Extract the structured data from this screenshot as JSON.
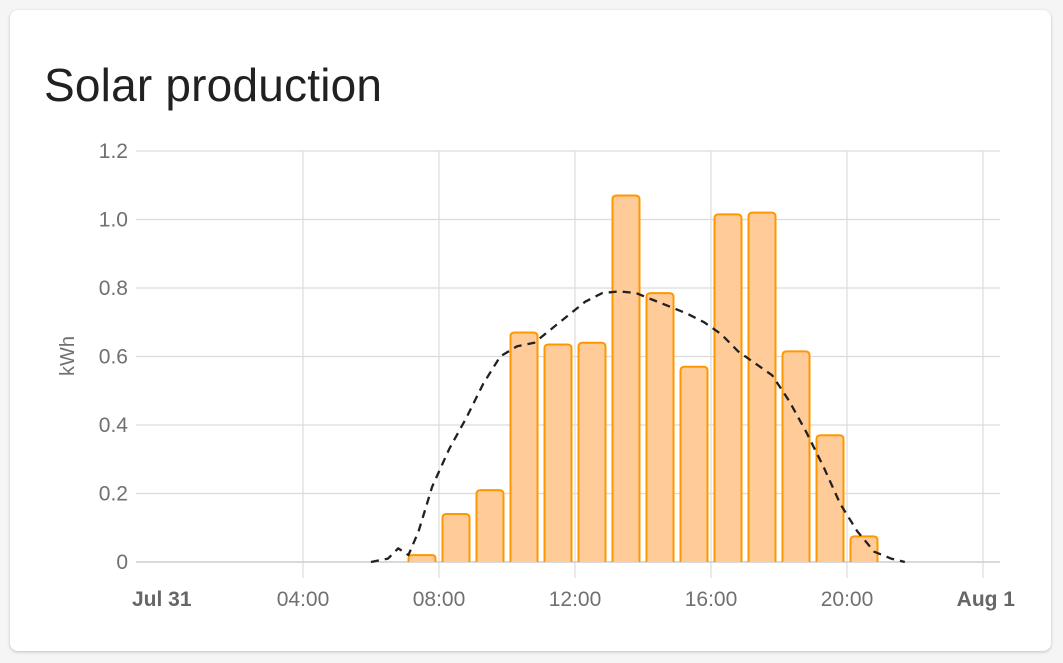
{
  "card": {
    "title": "Solar production"
  },
  "chart_data": {
    "type": "bar",
    "title": "Solar production",
    "ylabel": "kWh",
    "ylim": [
      0,
      1.2
    ],
    "yticks": [
      "0",
      "0.2",
      "0.4",
      "0.6",
      "0.8",
      "1.0",
      "1.2"
    ],
    "xticks": [
      {
        "hour": 0,
        "label": "Jul 31",
        "major": true
      },
      {
        "hour": 4,
        "label": "04:00",
        "major": false
      },
      {
        "hour": 8,
        "label": "08:00",
        "major": false
      },
      {
        "hour": 12,
        "label": "12:00",
        "major": false
      },
      {
        "hour": 16,
        "label": "16:00",
        "major": false
      },
      {
        "hour": 20,
        "label": "20:00",
        "major": false
      },
      {
        "hour": 24,
        "label": "Aug 1",
        "major": true
      }
    ],
    "grid": true,
    "bar_color": "#ff9800",
    "bar_fill": "#ffcc99",
    "bars": [
      {
        "hour": 7,
        "value": 0.02
      },
      {
        "hour": 8,
        "value": 0.14
      },
      {
        "hour": 9,
        "value": 0.21
      },
      {
        "hour": 10,
        "value": 0.67
      },
      {
        "hour": 11,
        "value": 0.635
      },
      {
        "hour": 12,
        "value": 0.64
      },
      {
        "hour": 13,
        "value": 1.07
      },
      {
        "hour": 14,
        "value": 0.785
      },
      {
        "hour": 15,
        "value": 0.57
      },
      {
        "hour": 16,
        "value": 1.015
      },
      {
        "hour": 17,
        "value": 1.02
      },
      {
        "hour": 18,
        "value": 0.615
      },
      {
        "hour": 19,
        "value": 0.37
      },
      {
        "hour": 20,
        "value": 0.075
      }
    ],
    "forecast": {
      "style": "dashed",
      "color": "#212121",
      "points": [
        {
          "hour": 6.0,
          "value": 0.0
        },
        {
          "hour": 6.5,
          "value": 0.01
        },
        {
          "hour": 6.8,
          "value": 0.04
        },
        {
          "hour": 7.1,
          "value": 0.02
        },
        {
          "hour": 7.4,
          "value": 0.09
        },
        {
          "hour": 7.8,
          "value": 0.22
        },
        {
          "hour": 8.3,
          "value": 0.33
        },
        {
          "hour": 8.8,
          "value": 0.42
        },
        {
          "hour": 9.3,
          "value": 0.52
        },
        {
          "hour": 9.8,
          "value": 0.6
        },
        {
          "hour": 10.3,
          "value": 0.63
        },
        {
          "hour": 10.8,
          "value": 0.64
        },
        {
          "hour": 11.3,
          "value": 0.68
        },
        {
          "hour": 11.8,
          "value": 0.72
        },
        {
          "hour": 12.3,
          "value": 0.76
        },
        {
          "hour": 12.8,
          "value": 0.785
        },
        {
          "hour": 13.3,
          "value": 0.79
        },
        {
          "hour": 13.8,
          "value": 0.785
        },
        {
          "hour": 14.3,
          "value": 0.765
        },
        {
          "hour": 14.8,
          "value": 0.745
        },
        {
          "hour": 15.3,
          "value": 0.725
        },
        {
          "hour": 15.8,
          "value": 0.7
        },
        {
          "hour": 16.3,
          "value": 0.665
        },
        {
          "hour": 16.8,
          "value": 0.615
        },
        {
          "hour": 17.3,
          "value": 0.58
        },
        {
          "hour": 17.8,
          "value": 0.545
        },
        {
          "hour": 18.3,
          "value": 0.47
        },
        {
          "hour": 18.8,
          "value": 0.38
        },
        {
          "hour": 19.3,
          "value": 0.28
        },
        {
          "hour": 19.8,
          "value": 0.17
        },
        {
          "hour": 20.3,
          "value": 0.09
        },
        {
          "hour": 20.8,
          "value": 0.03
        },
        {
          "hour": 21.3,
          "value": 0.01
        },
        {
          "hour": 21.7,
          "value": 0.0
        }
      ]
    }
  }
}
